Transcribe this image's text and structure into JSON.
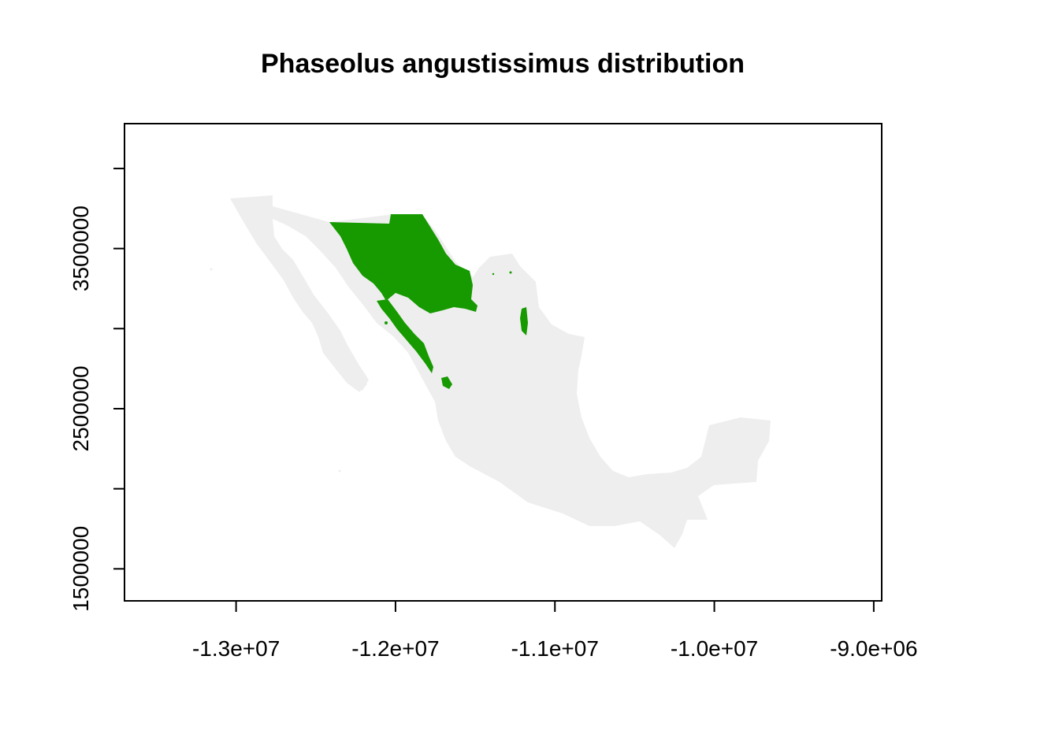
{
  "title": "Phaseolus angustissimus distribution",
  "colors": {
    "background": "#ffffff",
    "land": "#eeeeee",
    "distribution": "#169a00",
    "axes": "#000000"
  },
  "map_data": {
    "type": "raster-map",
    "region": "Mexico",
    "x_ticks": [
      {
        "value": -13000000,
        "label": "-1.3e+07"
      },
      {
        "value": -12000000,
        "label": "-1.2e+07"
      },
      {
        "value": -11000000,
        "label": "-1.1e+07"
      },
      {
        "value": -10000000,
        "label": "-1.0e+07"
      },
      {
        "value": -9000000,
        "label": "-9.0e+06"
      }
    ],
    "y_ticks": [
      {
        "value": 1500000,
        "label": "1500000"
      },
      {
        "value": 2000000,
        "label": ""
      },
      {
        "value": 2500000,
        "label": "2500000"
      },
      {
        "value": 3000000,
        "label": ""
      },
      {
        "value": 3500000,
        "label": "3500000"
      },
      {
        "value": 4000000,
        "label": ""
      }
    ],
    "xlim": [
      -13700000,
      -8950000
    ],
    "ylim": [
      1300000,
      4280000
    ]
  }
}
